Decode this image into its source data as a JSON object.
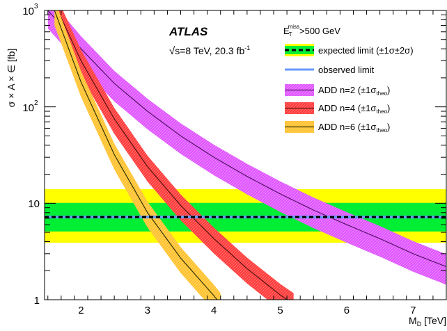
{
  "chart_data": {
    "type": "line",
    "title": "ATLAS",
    "subtitle_sqrt": "√",
    "subtitle": "s=8 TeV, 20.3 fb",
    "subtitle_sup": "-1",
    "xlabel": "M",
    "xlabel_sub": "D",
    "xlabel_unit": " [TeV]",
    "ylabel": "σ × A × ∈ [fb]",
    "xlim": [
      1.45,
      7.5
    ],
    "ylim": [
      1,
      1000
    ],
    "y_scale": "log",
    "x_ticks": [
      "2",
      "3",
      "4",
      "5",
      "6",
      "7"
    ],
    "y_ticks": [
      "1",
      "10",
      "10",
      "10"
    ],
    "y_tick_exponents": [
      "",
      "",
      "2",
      "3"
    ],
    "grid": false,
    "legend_position": "top-right",
    "legend_header": "E",
    "legend_header_sub": "T",
    "legend_header_sup": "miss",
    "legend_header_suffix": ">500 GeV",
    "expected_limit": {
      "value": 7.2,
      "band_1sigma": [
        5.1,
        10.1
      ],
      "band_2sigma": [
        3.9,
        14.0
      ],
      "colors": {
        "line": "#000000",
        "band_1sigma": "#00ee33",
        "band_2sigma": "#ffff00"
      }
    },
    "observed_limit": {
      "value": 7.2,
      "color": "#6699ff"
    },
    "series": [
      {
        "name": "ADD n=2",
        "color": "#cc33ff",
        "x": [
          1.5,
          1.7,
          2.0,
          2.5,
          3.0,
          3.5,
          4.0,
          4.5,
          5.0,
          5.5,
          6.0,
          6.5,
          7.0,
          7.5
        ],
        "y": [
          1000,
          700,
          400,
          175,
          90,
          50,
          30,
          19,
          12.5,
          8.5,
          6.0,
          4.3,
          3.0,
          2.2
        ],
        "band_frac": 0.35
      },
      {
        "name": "ADD n=4",
        "color": "#ff3333",
        "x": [
          1.65,
          2.0,
          2.5,
          3.0,
          3.5,
          4.0,
          4.5,
          5.0,
          5.2
        ],
        "y": [
          1000,
          300,
          75,
          24,
          9.5,
          4.3,
          2.1,
          1.12,
          0.9
        ],
        "band_frac": 0.3
      },
      {
        "name": "ADD n=6",
        "color": "#ffbb33",
        "x": [
          1.6,
          2.0,
          2.5,
          3.0,
          3.5,
          4.0,
          4.1
        ],
        "y": [
          1000,
          180,
          32,
          8.0,
          2.7,
          1.1,
          0.9
        ],
        "band_frac": 0.3
      }
    ],
    "legend_entries": [
      {
        "label": "expected limit (±1σ±2σ)",
        "key": "expected"
      },
      {
        "label": "observed limit",
        "key": "observed"
      },
      {
        "label": "ADD n=2 (±1σ",
        "sub": "theo",
        "suffix": ")",
        "key": "n2"
      },
      {
        "label": "ADD n=4 (±1σ",
        "sub": "theo",
        "suffix": ")",
        "key": "n4"
      },
      {
        "label": "ADD n=6 (±1σ",
        "sub": "theo",
        "suffix": ")",
        "key": "n6"
      }
    ]
  }
}
